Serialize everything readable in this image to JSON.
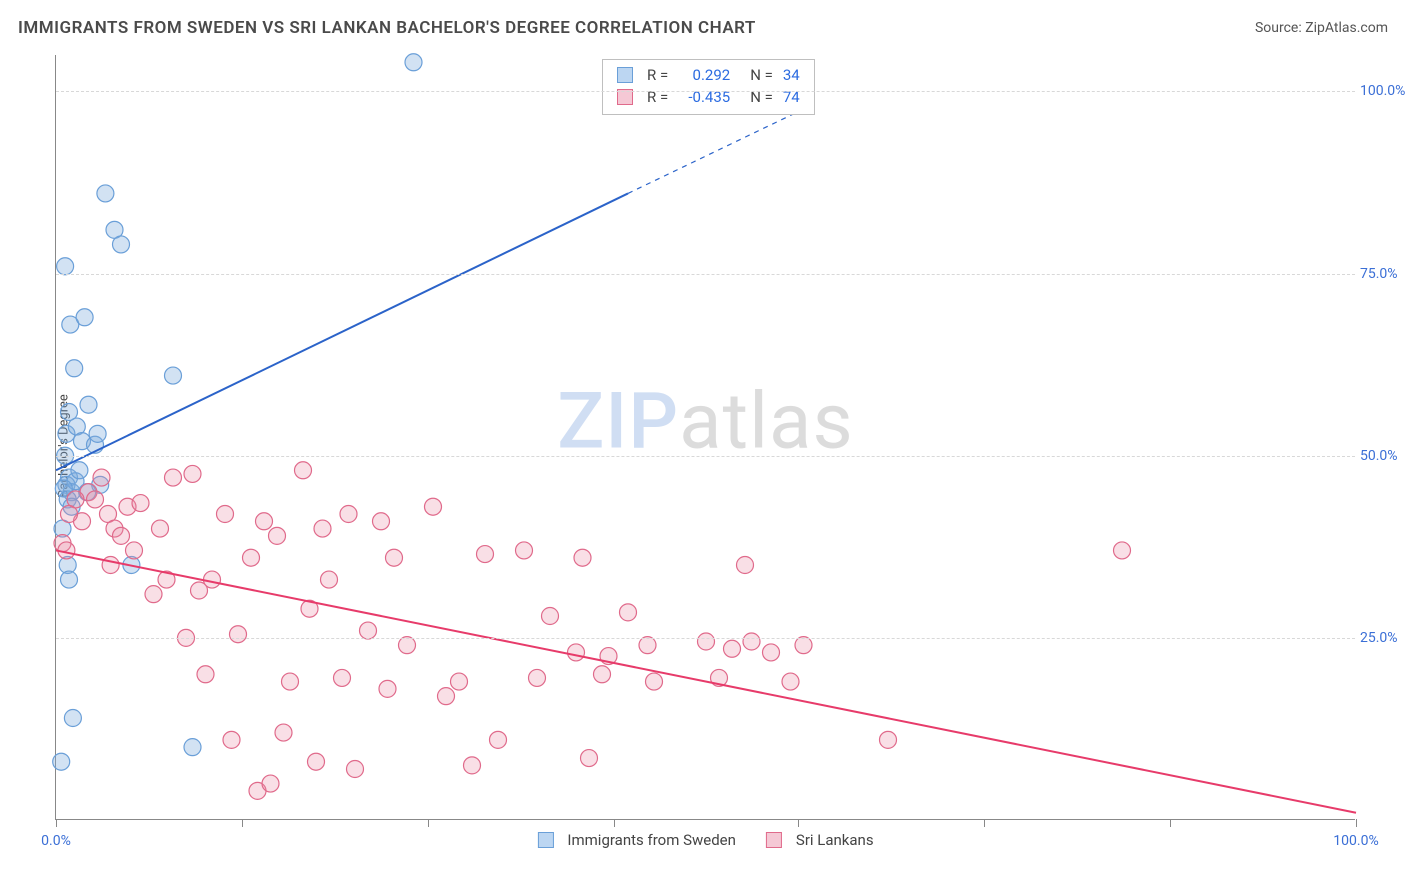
{
  "header": {
    "title": "IMMIGRANTS FROM SWEDEN VS SRI LANKAN BACHELOR'S DEGREE CORRELATION CHART",
    "source": "Source: ZipAtlas.com"
  },
  "chart": {
    "type": "scatter",
    "ylabel": "Bachelor's Degree",
    "watermark": {
      "zip": "ZIP",
      "atlas": "atlas"
    },
    "xlim": [
      0,
      100
    ],
    "ylim": [
      0,
      105
    ],
    "yticks": [
      {
        "v": 25,
        "label": "25.0%"
      },
      {
        "v": 50,
        "label": "50.0%"
      },
      {
        "v": 75,
        "label": "75.0%"
      },
      {
        "v": 100,
        "label": "100.0%"
      }
    ],
    "xtick_positions": [
      0,
      14.3,
      28.6,
      42.9,
      57.1,
      71.4,
      85.7,
      100
    ],
    "xtick_labels": [
      {
        "v": 0,
        "label": "0.0%"
      },
      {
        "v": 100,
        "label": "100.0%"
      }
    ],
    "grid_color": "#d8d8d8",
    "background_color": "#ffffff",
    "series": [
      {
        "name": "Immigrants from Sweden",
        "swatch_fill": "#bcd6f2",
        "swatch_stroke": "#6a9fd8",
        "marker_fill": "rgba(126,172,222,0.35)",
        "marker_stroke": "#6a9fd8",
        "marker_r": 8.5,
        "line_color": "#2b63c9",
        "line_width": 2,
        "r_label": "R =",
        "r_value": "0.292",
        "n_label": "N =",
        "n_value": "34",
        "trend": {
          "x1": 0,
          "y1": 48,
          "x2_solid": 44,
          "y2_solid": 86,
          "x2_dash": 58,
          "y2_dash": 98
        },
        "points": [
          [
            1.0,
            47
          ],
          [
            0.8,
            46
          ],
          [
            1.2,
            45
          ],
          [
            1.5,
            46.5
          ],
          [
            0.6,
            45.5
          ],
          [
            0.9,
            44
          ],
          [
            1.1,
            68
          ],
          [
            2.2,
            69
          ],
          [
            0.8,
            53
          ],
          [
            1.6,
            54
          ],
          [
            1.0,
            56
          ],
          [
            2.0,
            52
          ],
          [
            1.4,
            62
          ],
          [
            3.0,
            51.5
          ],
          [
            3.2,
            53
          ],
          [
            0.7,
            76
          ],
          [
            3.8,
            86
          ],
          [
            4.5,
            81
          ],
          [
            5.0,
            79
          ],
          [
            0.9,
            35
          ],
          [
            1.0,
            33
          ],
          [
            2.5,
            57
          ],
          [
            9.0,
            61
          ],
          [
            1.3,
            14
          ],
          [
            3.4,
            46
          ],
          [
            0.4,
            8
          ],
          [
            10.5,
            10
          ],
          [
            5.8,
            35
          ],
          [
            27.5,
            104
          ],
          [
            1.2,
            43
          ],
          [
            0.7,
            50
          ],
          [
            2.4,
            45
          ],
          [
            1.8,
            48
          ],
          [
            0.5,
            40
          ]
        ]
      },
      {
        "name": "Sri Lankans",
        "swatch_fill": "#f5c8d5",
        "swatch_stroke": "#e06a8b",
        "marker_fill": "rgba(235,140,165,0.28)",
        "marker_stroke": "#e06a8b",
        "marker_r": 8.5,
        "line_color": "#e73b6a",
        "line_width": 2,
        "r_label": "R =",
        "r_value": "-0.435",
        "n_label": "N =",
        "n_value": "74",
        "trend": {
          "x1": 0,
          "y1": 37,
          "x2_solid": 100,
          "y2_solid": 1
        },
        "points": [
          [
            0.5,
            38
          ],
          [
            2.5,
            45
          ],
          [
            3.0,
            44
          ],
          [
            3.5,
            47
          ],
          [
            4.0,
            42
          ],
          [
            4.5,
            40
          ],
          [
            5.0,
            39
          ],
          [
            5.5,
            43
          ],
          [
            6.0,
            37
          ],
          [
            6.5,
            43.5
          ],
          [
            7.5,
            31
          ],
          [
            8.0,
            40
          ],
          [
            8.5,
            33
          ],
          [
            9.0,
            47
          ],
          [
            10.0,
            25
          ],
          [
            10.5,
            47.5
          ],
          [
            11.0,
            31.5
          ],
          [
            11.5,
            20
          ],
          [
            12.0,
            33
          ],
          [
            13.0,
            42
          ],
          [
            13.5,
            11
          ],
          [
            14.0,
            25.5
          ],
          [
            15.0,
            36
          ],
          [
            15.5,
            4
          ],
          [
            16.0,
            41
          ],
          [
            16.5,
            5
          ],
          [
            17.0,
            39
          ],
          [
            17.5,
            12
          ],
          [
            18.0,
            19
          ],
          [
            19.0,
            48
          ],
          [
            19.5,
            29
          ],
          [
            20.0,
            8
          ],
          [
            20.5,
            40
          ],
          [
            21.0,
            33
          ],
          [
            22.0,
            19.5
          ],
          [
            22.5,
            42
          ],
          [
            23.0,
            7
          ],
          [
            24.0,
            26
          ],
          [
            25.0,
            41
          ],
          [
            25.5,
            18
          ],
          [
            26.0,
            36
          ],
          [
            27.0,
            24
          ],
          [
            29.0,
            43
          ],
          [
            30.0,
            17
          ],
          [
            31.0,
            19
          ],
          [
            32.0,
            7.5
          ],
          [
            33.0,
            36.5
          ],
          [
            34.0,
            11
          ],
          [
            36.0,
            37
          ],
          [
            37.0,
            19.5
          ],
          [
            38.0,
            28
          ],
          [
            40.0,
            23
          ],
          [
            40.5,
            36
          ],
          [
            41.0,
            8.5
          ],
          [
            42.0,
            20
          ],
          [
            42.5,
            22.5
          ],
          [
            44.0,
            28.5
          ],
          [
            45.5,
            24
          ],
          [
            46.0,
            19
          ],
          [
            50.0,
            24.5
          ],
          [
            51.0,
            19.5
          ],
          [
            52.0,
            23.5
          ],
          [
            53.0,
            35
          ],
          [
            53.5,
            24.5
          ],
          [
            55.0,
            23
          ],
          [
            56.5,
            19
          ],
          [
            57.5,
            24
          ],
          [
            64.0,
            11
          ],
          [
            82.0,
            37
          ],
          [
            4.2,
            35
          ],
          [
            2.0,
            41
          ],
          [
            1.5,
            44
          ],
          [
            1.0,
            42
          ],
          [
            0.8,
            37
          ]
        ]
      }
    ],
    "stats_box": {
      "left_pct": 42,
      "top_pct": 0.5
    },
    "legend_bottom": true
  }
}
